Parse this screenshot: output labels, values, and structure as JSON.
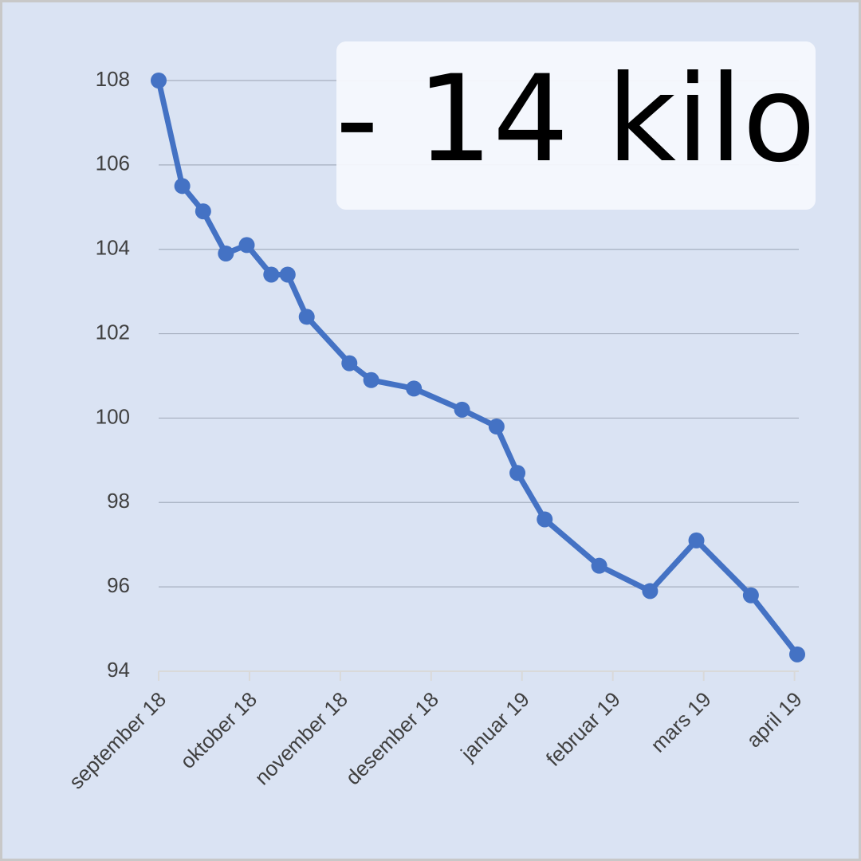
{
  "chart_data": {
    "type": "line",
    "annotation": "- 14 kilo",
    "x": [
      0,
      0.26,
      0.49,
      0.74,
      0.97,
      1.24,
      1.42,
      1.63,
      2.1,
      2.34,
      2.81,
      3.34,
      3.72,
      3.95,
      4.25,
      4.85,
      5.41,
      5.92,
      6.52,
      7.03
    ],
    "series": [
      {
        "color": "#4472c4",
        "values": [
          108,
          105.5,
          104.9,
          103.9,
          104.1,
          103.4,
          103.4,
          102.4,
          101.3,
          100.9,
          100.7,
          100.2,
          99.8,
          98.7,
          97.6,
          96.5,
          95.9,
          97.1,
          95.8,
          94.4
        ]
      }
    ],
    "xlim": [
      0,
      7.03
    ],
    "xticks": [
      {
        "value": 0,
        "label": "september 18"
      },
      {
        "value": 1,
        "label": "oktober 18"
      },
      {
        "value": 2,
        "label": "november 18"
      },
      {
        "value": 3,
        "label": "desember 18"
      },
      {
        "value": 4,
        "label": "januar 19"
      },
      {
        "value": 5,
        "label": "februar 19"
      },
      {
        "value": 6,
        "label": "mars 19"
      },
      {
        "value": 7,
        "label": "april 19"
      }
    ],
    "ylim": [
      94,
      108
    ],
    "yticks": [
      94,
      96,
      98,
      100,
      102,
      104,
      106,
      108
    ],
    "grid": true
  }
}
